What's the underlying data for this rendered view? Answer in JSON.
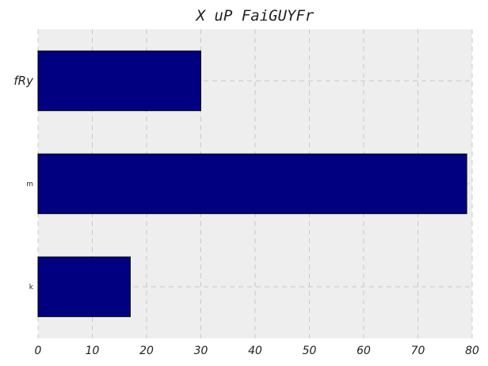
{
  "chart_data": {
    "type": "bar",
    "orientation": "horizontal",
    "title": "X uP FaiGUYFr",
    "xlabel": "",
    "ylabel": "",
    "categories": [
      "k",
      "m",
      "fRy"
    ],
    "values": [
      17,
      79,
      30
    ],
    "xlim": [
      0,
      80
    ],
    "xticks": [
      0,
      10,
      20,
      30,
      40,
      50,
      60,
      70,
      80
    ],
    "grid": true,
    "legend": "none",
    "colors": {
      "bar": "#000080",
      "plot_background": "#eeeeee",
      "grid": "#c8c8c8"
    }
  }
}
